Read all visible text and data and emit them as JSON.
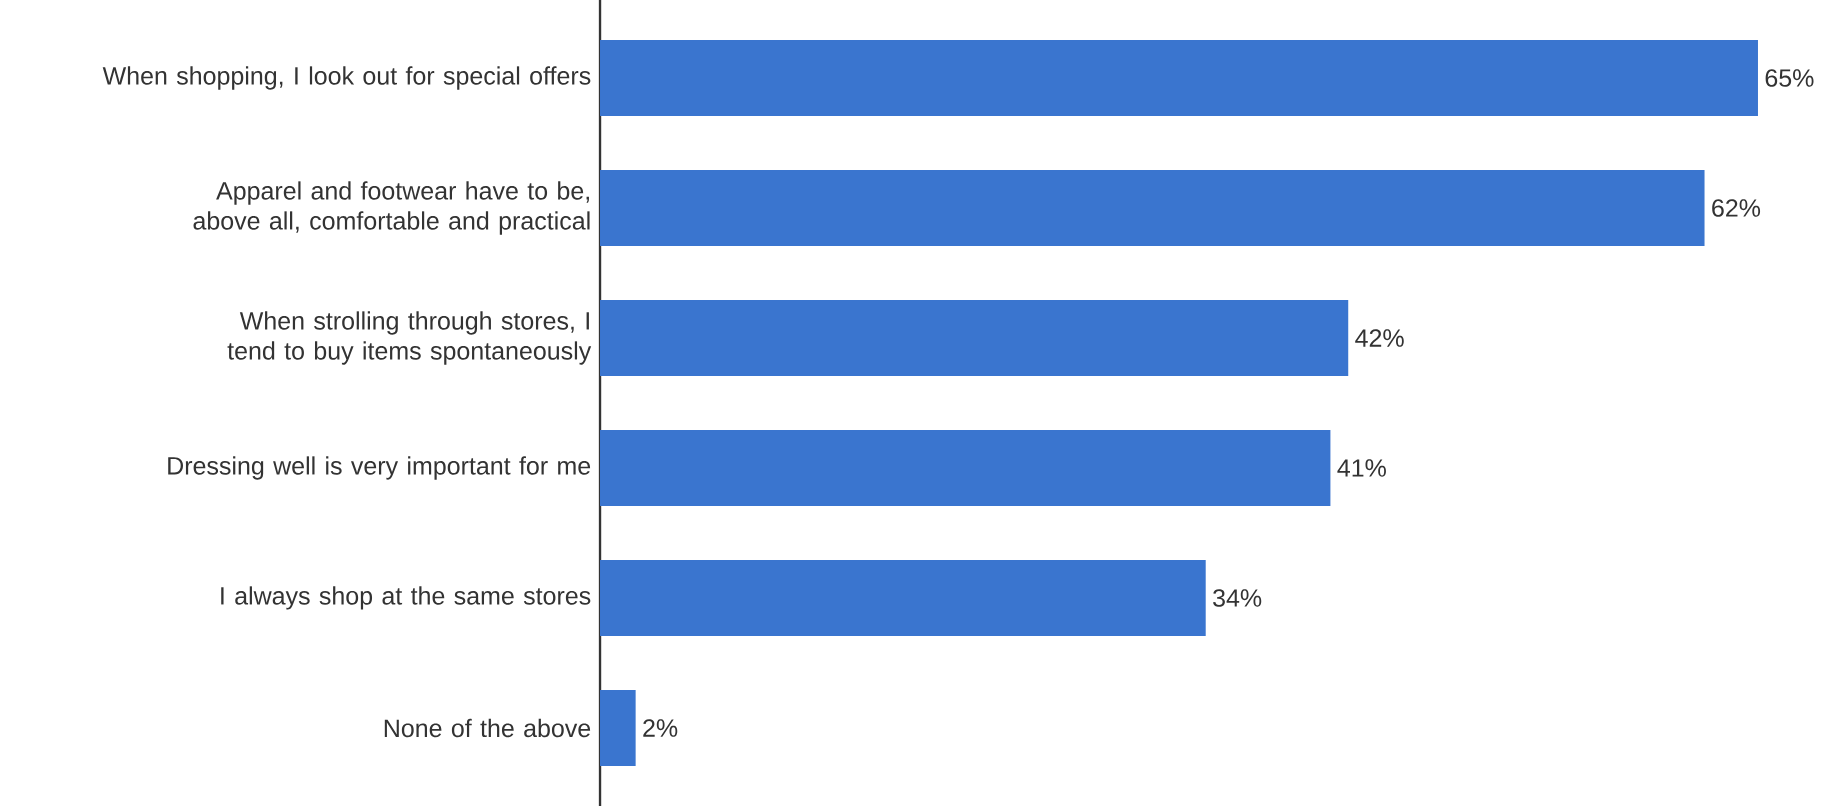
{
  "chart_data": {
    "type": "bar",
    "orientation": "horizontal",
    "categories": [
      "When shopping, I look out for special offers",
      "Apparel and footwear have to be, above all, comfortable and practical",
      "When strolling through stores, I tend to buy items spontaneously",
      "Dressing well is very important for me",
      "I always shop at the same stores",
      "None of the above"
    ],
    "values": [
      65,
      62,
      42,
      41,
      34,
      2
    ],
    "value_labels": [
      "65%",
      "62%",
      "42%",
      "41%",
      "34%",
      "2%"
    ],
    "color": "#3a75cf"
  }
}
